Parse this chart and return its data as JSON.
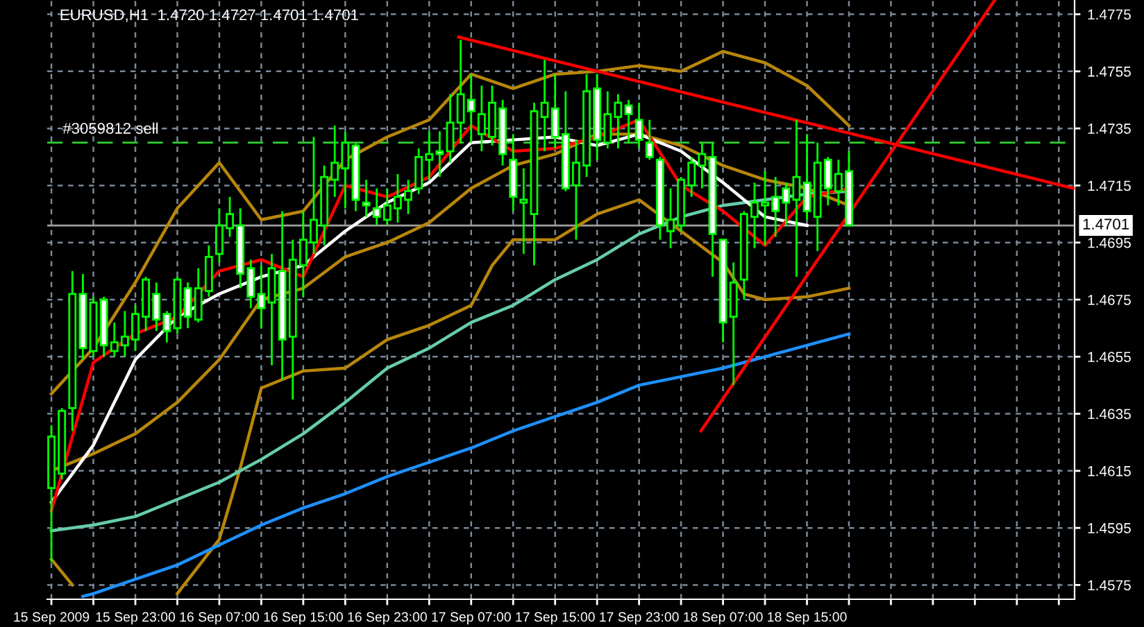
{
  "chart_data": {
    "type": "candlestick",
    "title": "EURUSD,H1  1.4720 1.4727 1.4701 1.4701",
    "color": "#00ff00",
    "x": [
      "2009-09-15T15:00",
      "2009-09-15T16:00",
      "2009-09-15T17:00",
      "2009-09-15T18:00",
      "2009-09-15T19:00",
      "2009-09-15T20:00",
      "2009-09-15T21:00",
      "2009-09-15T22:00",
      "2009-09-15T23:00",
      "2009-09-16T00:00",
      "2009-09-16T01:00",
      "2009-09-16T02:00",
      "2009-09-16T03:00",
      "2009-09-16T04:00",
      "2009-09-16T05:00",
      "2009-09-16T06:00",
      "2009-09-16T07:00",
      "2009-09-16T08:00",
      "2009-09-16T09:00",
      "2009-09-16T10:00",
      "2009-09-16T11:00",
      "2009-09-16T12:00",
      "2009-09-16T13:00",
      "2009-09-16T14:00",
      "2009-09-16T15:00",
      "2009-09-16T16:00",
      "2009-09-16T17:00",
      "2009-09-16T18:00",
      "2009-09-16T19:00",
      "2009-09-16T20:00",
      "2009-09-16T21:00",
      "2009-09-16T22:00",
      "2009-09-16T23:00",
      "2009-09-17T00:00",
      "2009-09-17T01:00",
      "2009-09-17T02:00",
      "2009-09-17T03:00",
      "2009-09-17T04:00",
      "2009-09-17T05:00",
      "2009-09-17T06:00",
      "2009-09-17T07:00",
      "2009-09-17T08:00",
      "2009-09-17T09:00",
      "2009-09-17T10:00",
      "2009-09-17T11:00",
      "2009-09-17T12:00",
      "2009-09-17T13:00",
      "2009-09-17T14:00",
      "2009-09-17T15:00",
      "2009-09-17T16:00",
      "2009-09-17T17:00",
      "2009-09-17T18:00",
      "2009-09-17T19:00",
      "2009-09-17T20:00",
      "2009-09-17T21:00",
      "2009-09-17T22:00",
      "2009-09-17T23:00",
      "2009-09-18T00:00",
      "2009-09-18T01:00",
      "2009-09-18T02:00",
      "2009-09-18T03:00",
      "2009-09-18T04:00",
      "2009-09-18T05:00",
      "2009-09-18T06:00",
      "2009-09-18T07:00",
      "2009-09-18T08:00",
      "2009-09-18T09:00",
      "2009-09-18T10:00",
      "2009-09-18T11:00",
      "2009-09-18T12:00",
      "2009-09-18T13:00",
      "2009-09-18T14:00",
      "2009-09-18T15:00",
      "2009-09-18T16:00",
      "2009-09-18T17:00",
      "2009-09-18T18:00",
      "2009-09-18T19:00"
    ],
    "ohlc": [
      [
        1.4609,
        1.4631,
        1.4583,
        1.4627
      ],
      [
        1.4614,
        1.4637,
        1.4612,
        1.4636
      ],
      [
        1.4637,
        1.4685,
        1.4629,
        1.4677
      ],
      [
        1.4677,
        1.4684,
        1.4654,
        1.4658
      ],
      [
        1.4657,
        1.4676,
        1.4655,
        1.4674
      ],
      [
        1.4675,
        1.4676,
        1.4655,
        1.4659
      ],
      [
        1.4657,
        1.4667,
        1.4655,
        1.466
      ],
      [
        1.4659,
        1.4671,
        1.4655,
        1.4662
      ],
      [
        1.4661,
        1.4673,
        1.4657,
        1.467
      ],
      [
        1.4669,
        1.4683,
        1.4664,
        1.4682
      ],
      [
        1.4677,
        1.4681,
        1.4664,
        1.4668
      ],
      [
        1.467,
        1.4671,
        1.466,
        1.4664
      ],
      [
        1.4665,
        1.4683,
        1.4663,
        1.4682
      ],
      [
        1.4679,
        1.4681,
        1.4665,
        1.4669
      ],
      [
        1.4668,
        1.4686,
        1.4667,
        1.4679
      ],
      [
        1.4678,
        1.4694,
        1.4676,
        1.469
      ],
      [
        1.4691,
        1.4707,
        1.4688,
        1.4701
      ],
      [
        1.47,
        1.4711,
        1.4697,
        1.4705
      ],
      [
        1.4701,
        1.4707,
        1.4679,
        1.4684
      ],
      [
        1.4686,
        1.4689,
        1.4672,
        1.4676
      ],
      [
        1.4677,
        1.4687,
        1.4665,
        1.4672
      ],
      [
        1.4674,
        1.4691,
        1.4652,
        1.4686
      ],
      [
        1.4685,
        1.4706,
        1.4647,
        1.4661
      ],
      [
        1.4662,
        1.4696,
        1.464,
        1.4689
      ],
      [
        1.4687,
        1.4706,
        1.4676,
        1.4696
      ],
      [
        1.4695,
        1.4732,
        1.4691,
        1.4703
      ],
      [
        1.4701,
        1.4722,
        1.4694,
        1.4718
      ],
      [
        1.4717,
        1.4736,
        1.4711,
        1.4723
      ],
      [
        1.4721,
        1.4734,
        1.4707,
        1.473
      ],
      [
        1.4729,
        1.473,
        1.4706,
        1.471
      ],
      [
        1.4709,
        1.4717,
        1.4704,
        1.4708
      ],
      [
        1.4707,
        1.4714,
        1.4701,
        1.4704
      ],
      [
        1.4703,
        1.4714,
        1.4701,
        1.4708
      ],
      [
        1.4707,
        1.4719,
        1.4702,
        1.4711
      ],
      [
        1.471,
        1.4717,
        1.4705,
        1.4713
      ],
      [
        1.4714,
        1.4728,
        1.4712,
        1.4725
      ],
      [
        1.4724,
        1.4734,
        1.4717,
        1.4726
      ],
      [
        1.4727,
        1.4734,
        1.4718,
        1.4726
      ],
      [
        1.4727,
        1.4747,
        1.4723,
        1.4737
      ],
      [
        1.4737,
        1.4766,
        1.473,
        1.4747
      ],
      [
        1.4745,
        1.4754,
        1.473,
        1.4741
      ],
      [
        1.4733,
        1.475,
        1.4727,
        1.474
      ],
      [
        1.4732,
        1.475,
        1.4729,
        1.4744
      ],
      [
        1.4742,
        1.4745,
        1.4722,
        1.4726
      ],
      [
        1.4724,
        1.4733,
        1.4706,
        1.4711
      ],
      [
        1.4709,
        1.4721,
        1.4691,
        1.471
      ],
      [
        1.4705,
        1.4744,
        1.4687,
        1.4741
      ],
      [
        1.4739,
        1.4759,
        1.4727,
        1.4744
      ],
      [
        1.4742,
        1.4754,
        1.4728,
        1.4732
      ],
      [
        1.4733,
        1.4748,
        1.4713,
        1.4714
      ],
      [
        1.4715,
        1.4731,
        1.4696,
        1.4723
      ],
      [
        1.4722,
        1.4754,
        1.4718,
        1.4748
      ],
      [
        1.4749,
        1.4754,
        1.4724,
        1.4731
      ],
      [
        1.473,
        1.4748,
        1.4728,
        1.474
      ],
      [
        1.4739,
        1.4747,
        1.4728,
        1.4744
      ],
      [
        1.4743,
        1.4745,
        1.473,
        1.474
      ],
      [
        1.4738,
        1.4744,
        1.4728,
        1.4731
      ],
      [
        1.473,
        1.4738,
        1.4724,
        1.4725
      ],
      [
        1.4724,
        1.4725,
        1.4696,
        1.4701
      ],
      [
        1.4699,
        1.4714,
        1.4693,
        1.4703
      ],
      [
        1.4701,
        1.4718,
        1.4699,
        1.4717
      ],
      [
        1.4715,
        1.4725,
        1.4711,
        1.4723
      ],
      [
        1.4722,
        1.473,
        1.4714,
        1.4726
      ],
      [
        1.4725,
        1.473,
        1.4683,
        1.4698
      ],
      [
        1.4696,
        1.4696,
        1.466,
        1.4667
      ],
      [
        1.4669,
        1.4688,
        1.4645,
        1.4681
      ],
      [
        1.4682,
        1.4706,
        1.4675,
        1.4705
      ],
      [
        1.4704,
        1.4716,
        1.4693,
        1.4709
      ],
      [
        1.4708,
        1.472,
        1.4694,
        1.4709
      ],
      [
        1.4711,
        1.4718,
        1.4697,
        1.4706
      ],
      [
        1.4714,
        1.4716,
        1.4701,
        1.4709
      ],
      [
        1.471,
        1.4738,
        1.4683,
        1.4718
      ],
      [
        1.4716,
        1.4733,
        1.4703,
        1.4706
      ],
      [
        1.4704,
        1.473,
        1.4692,
        1.4723
      ],
      [
        1.4724,
        1.4725,
        1.4708,
        1.4714
      ],
      [
        1.4713,
        1.4724,
        1.4708,
        1.4719
      ],
      [
        1.472,
        1.4727,
        1.4701,
        1.4701
      ]
    ],
    "series": [
      {
        "type": "line",
        "color": "#b8860b",
        "x": [
          "2009-09-15T15:00",
          "2009-09-15T19:00",
          "2009-09-15T23:00",
          "2009-09-16T03:00",
          "2009-09-16T07:00",
          "2009-09-16T11:00",
          "2009-09-16T15:00",
          "2009-09-16T19:00",
          "2009-09-16T23:00",
          "2009-09-17T03:00",
          "2009-09-17T07:00",
          "2009-09-17T11:00",
          "2009-09-17T15:00",
          "2009-09-17T19:00",
          "2009-09-17T23:00",
          "2009-09-18T03:00",
          "2009-09-18T07:00",
          "2009-09-18T11:00",
          "2009-09-18T15:00",
          "2009-09-18T19:00"
        ],
        "values": [
          1.4642,
          1.4658,
          1.4681,
          1.4707,
          1.4723,
          1.4703,
          1.4706,
          1.4724,
          1.4732,
          1.4738,
          1.4754,
          1.4749,
          1.4754,
          1.4755,
          1.4757,
          1.4755,
          1.4762,
          1.4758,
          1.475,
          1.4736
        ]
      },
      {
        "type": "line",
        "color": "#b8860b",
        "x": [
          "2009-09-15T15:00",
          "2009-09-15T19:00",
          "2009-09-15T23:00",
          "2009-09-16T03:00",
          "2009-09-16T07:00",
          "2009-09-16T11:00",
          "2009-09-16T15:00",
          "2009-09-16T19:00",
          "2009-09-16T23:00",
          "2009-09-17T03:00",
          "2009-09-17T07:00",
          "2009-09-17T11:00",
          "2009-09-17T15:00",
          "2009-09-17T19:00",
          "2009-09-17T23:00",
          "2009-09-18T03:00",
          "2009-09-18T07:00",
          "2009-09-18T11:00",
          "2009-09-18T15:00",
          "2009-09-18T19:00"
        ],
        "values": [
          1.4615,
          1.4621,
          1.4628,
          1.4639,
          1.4654,
          1.4675,
          1.4679,
          1.469,
          1.4695,
          1.4702,
          1.4714,
          1.4722,
          1.4726,
          1.4733,
          1.4733,
          1.4729,
          1.4722,
          1.4717,
          1.4714,
          1.4708
        ]
      },
      {
        "type": "line",
        "color": "#b8860b",
        "x": [
          "2009-09-15T15:00",
          "2009-09-15T17:00",
          "2009-09-15T18:00",
          "2009-09-16T03:00",
          "2009-09-16T07:00",
          "2009-09-16T09:00",
          "2009-09-16T11:00",
          "2009-09-16T15:00",
          "2009-09-16T19:00",
          "2009-09-16T23:00",
          "2009-09-17T03:00",
          "2009-09-17T07:00",
          "2009-09-17T09:00",
          "2009-09-17T11:00",
          "2009-09-17T15:00",
          "2009-09-17T19:00",
          "2009-09-17T23:00",
          "2009-09-18T03:00",
          "2009-09-18T07:00",
          "2009-09-18T09:00",
          "2009-09-18T11:00",
          "2009-09-18T15:00",
          "2009-09-18T19:00"
        ],
        "values": [
          1.4584,
          1.4575,
          null,
          1.4572,
          1.4591,
          1.4616,
          1.4644,
          1.465,
          1.4651,
          1.4661,
          1.4666,
          1.4673,
          1.4687,
          1.4696,
          1.4696,
          1.4705,
          1.471,
          1.4699,
          1.4688,
          1.4677,
          1.4675,
          1.4676,
          1.4679
        ]
      },
      {
        "type": "line",
        "color": "#1e90ff",
        "x": [
          "2009-09-15T18:00",
          "2009-09-15T19:00",
          "2009-09-15T23:00",
          "2009-09-16T03:00",
          "2009-09-16T07:00",
          "2009-09-16T11:00",
          "2009-09-16T15:00",
          "2009-09-16T19:00",
          "2009-09-16T23:00",
          "2009-09-17T03:00",
          "2009-09-17T07:00",
          "2009-09-17T11:00",
          "2009-09-17T15:00",
          "2009-09-17T19:00",
          "2009-09-17T23:00",
          "2009-09-18T03:00",
          "2009-09-18T07:00",
          "2009-09-18T11:00",
          "2009-09-18T15:00",
          "2009-09-18T19:00"
        ],
        "values": [
          1.4571,
          1.4572,
          1.4577,
          1.4582,
          1.4589,
          1.4596,
          1.4602,
          1.4607,
          1.4613,
          1.4618,
          1.4623,
          1.4629,
          1.4634,
          1.4639,
          1.4645,
          1.4648,
          1.4651,
          1.4655,
          1.4659,
          1.4663
        ]
      },
      {
        "type": "line",
        "color": "#66cdaa",
        "x": [
          "2009-09-15T15:00",
          "2009-09-15T19:00",
          "2009-09-15T23:00",
          "2009-09-16T03:00",
          "2009-09-16T07:00",
          "2009-09-16T11:00",
          "2009-09-16T15:00",
          "2009-09-16T19:00",
          "2009-09-16T23:00",
          "2009-09-17T03:00",
          "2009-09-17T07:00",
          "2009-09-17T11:00",
          "2009-09-17T15:00",
          "2009-09-17T19:00",
          "2009-09-17T23:00",
          "2009-09-18T03:00",
          "2009-09-18T07:00",
          "2009-09-18T11:00",
          "2009-09-18T15:00",
          "2009-09-18T19:00"
        ],
        "values": [
          1.4594,
          1.4596,
          1.4599,
          1.4605,
          1.4611,
          1.4619,
          1.4628,
          1.4639,
          1.4651,
          1.4658,
          1.4667,
          1.4673,
          1.4682,
          1.4689,
          1.4698,
          1.4704,
          1.4708,
          1.471,
          1.4712,
          1.4713
        ]
      },
      {
        "type": "line",
        "color": "#ffffff",
        "x": [
          "2009-09-15T15:00",
          "2009-09-15T19:00",
          "2009-09-15T23:00",
          "2009-09-16T03:00",
          "2009-09-16T07:00",
          "2009-09-16T11:00",
          "2009-09-16T15:00",
          "2009-09-16T19:00",
          "2009-09-16T23:00",
          "2009-09-17T03:00",
          "2009-09-17T07:00",
          "2009-09-17T11:00",
          "2009-09-17T15:00",
          "2009-09-17T19:00",
          "2009-09-17T23:00",
          "2009-09-18T03:00",
          "2009-09-18T07:00",
          "2009-09-18T11:00",
          "2009-09-18T15:00"
        ],
        "values": [
          1.4604,
          1.4624,
          1.4654,
          1.4669,
          1.4677,
          1.4683,
          1.4687,
          1.4699,
          1.4709,
          1.4716,
          1.473,
          1.4731,
          1.4732,
          1.4729,
          1.4733,
          1.4727,
          1.4716,
          1.4704,
          1.4701
        ]
      },
      {
        "type": "line",
        "color": "#ff0000",
        "x": [
          "2009-09-15T15:00",
          "2009-09-15T19:00",
          "2009-09-15T23:00",
          "2009-09-16T03:00",
          "2009-09-16T07:00",
          "2009-09-16T11:00",
          "2009-09-16T15:00",
          "2009-09-16T19:00",
          "2009-09-16T23:00",
          "2009-09-17T03:00",
          "2009-09-17T07:00",
          "2009-09-17T11:00",
          "2009-09-17T15:00",
          "2009-09-17T19:00",
          "2009-09-17T23:00",
          "2009-09-18T03:00",
          "2009-09-18T07:00",
          "2009-09-18T11:00",
          "2009-09-18T15:00",
          "2009-09-18T19:00"
        ],
        "values": [
          1.4601,
          1.4653,
          1.4663,
          1.4669,
          1.4685,
          1.4689,
          1.4683,
          1.4715,
          1.4711,
          1.4718,
          1.4736,
          1.4727,
          1.4728,
          1.4732,
          1.4738,
          1.4715,
          1.4706,
          1.4694,
          1.4711,
          1.4714
        ]
      },
      {
        "type": "line",
        "color": "#ff0000",
        "x": [
          "2009-09-17T05:48",
          "2009-09-19T16:24"
        ],
        "values": [
          1.4767,
          1.4714
        ]
      },
      {
        "type": "line",
        "color": "#ff0000",
        "x": [
          "2009-09-18T04:54",
          "2009-09-19T08:54"
        ],
        "values": [
          1.4629,
          1.478
        ]
      }
    ],
    "ref_lines": [
      {
        "axis": "y",
        "value": 1.473,
        "label": "#3059812 sell",
        "color": "#32cd32",
        "line_style": "dashed"
      },
      {
        "axis": "y",
        "value": 1.4701,
        "label": "1.4701",
        "color": "#a0a0a0",
        "line_style": "solid"
      }
    ],
    "xlim": [
      "2009-09-15T14:36",
      "2009-09-19T16:30"
    ],
    "ylim": [
      1.457,
      1.478
    ],
    "xticks": [
      {
        "value": "2009-09-15T15:00",
        "label": "15 Sep 2009"
      },
      {
        "value": "2009-09-15T19:00",
        "label": null
      },
      {
        "value": "2009-09-15T23:00",
        "label": "15 Sep 23:00"
      },
      {
        "value": "2009-09-16T03:00",
        "label": null
      },
      {
        "value": "2009-09-16T07:00",
        "label": "16 Sep 07:00"
      },
      {
        "value": "2009-09-16T11:00",
        "label": null
      },
      {
        "value": "2009-09-16T15:00",
        "label": "16 Sep 15:00"
      },
      {
        "value": "2009-09-16T19:00",
        "label": null
      },
      {
        "value": "2009-09-16T23:00",
        "label": "16 Sep 23:00"
      },
      {
        "value": "2009-09-17T03:00",
        "label": null
      },
      {
        "value": "2009-09-17T07:00",
        "label": "17 Sep 07:00"
      },
      {
        "value": "2009-09-17T11:00",
        "label": null
      },
      {
        "value": "2009-09-17T15:00",
        "label": "17 Sep 15:00"
      },
      {
        "value": "2009-09-17T19:00",
        "label": null
      },
      {
        "value": "2009-09-17T23:00",
        "label": "17 Sep 23:00"
      },
      {
        "value": "2009-09-18T03:00",
        "label": null
      },
      {
        "value": "2009-09-18T07:00",
        "label": "18 Sep 07:00"
      },
      {
        "value": "2009-09-18T11:00",
        "label": null
      },
      {
        "value": "2009-09-18T15:00",
        "label": "18 Sep 15:00"
      },
      {
        "value": "2009-09-18T19:00",
        "label": null
      },
      {
        "value": "2009-09-18T23:00",
        "label": null
      },
      {
        "value": "2009-09-19T03:00",
        "label": null
      },
      {
        "value": "2009-09-19T07:00",
        "label": null
      },
      {
        "value": "2009-09-19T11:00",
        "label": null
      },
      {
        "value": "2009-09-19T15:00",
        "label": null
      }
    ],
    "yticks": [
      1.4575,
      1.4595,
      1.4615,
      1.4635,
      1.4655,
      1.4675,
      1.4695,
      1.4715,
      1.4735,
      1.4755,
      1.4775
    ],
    "grid": true
  }
}
